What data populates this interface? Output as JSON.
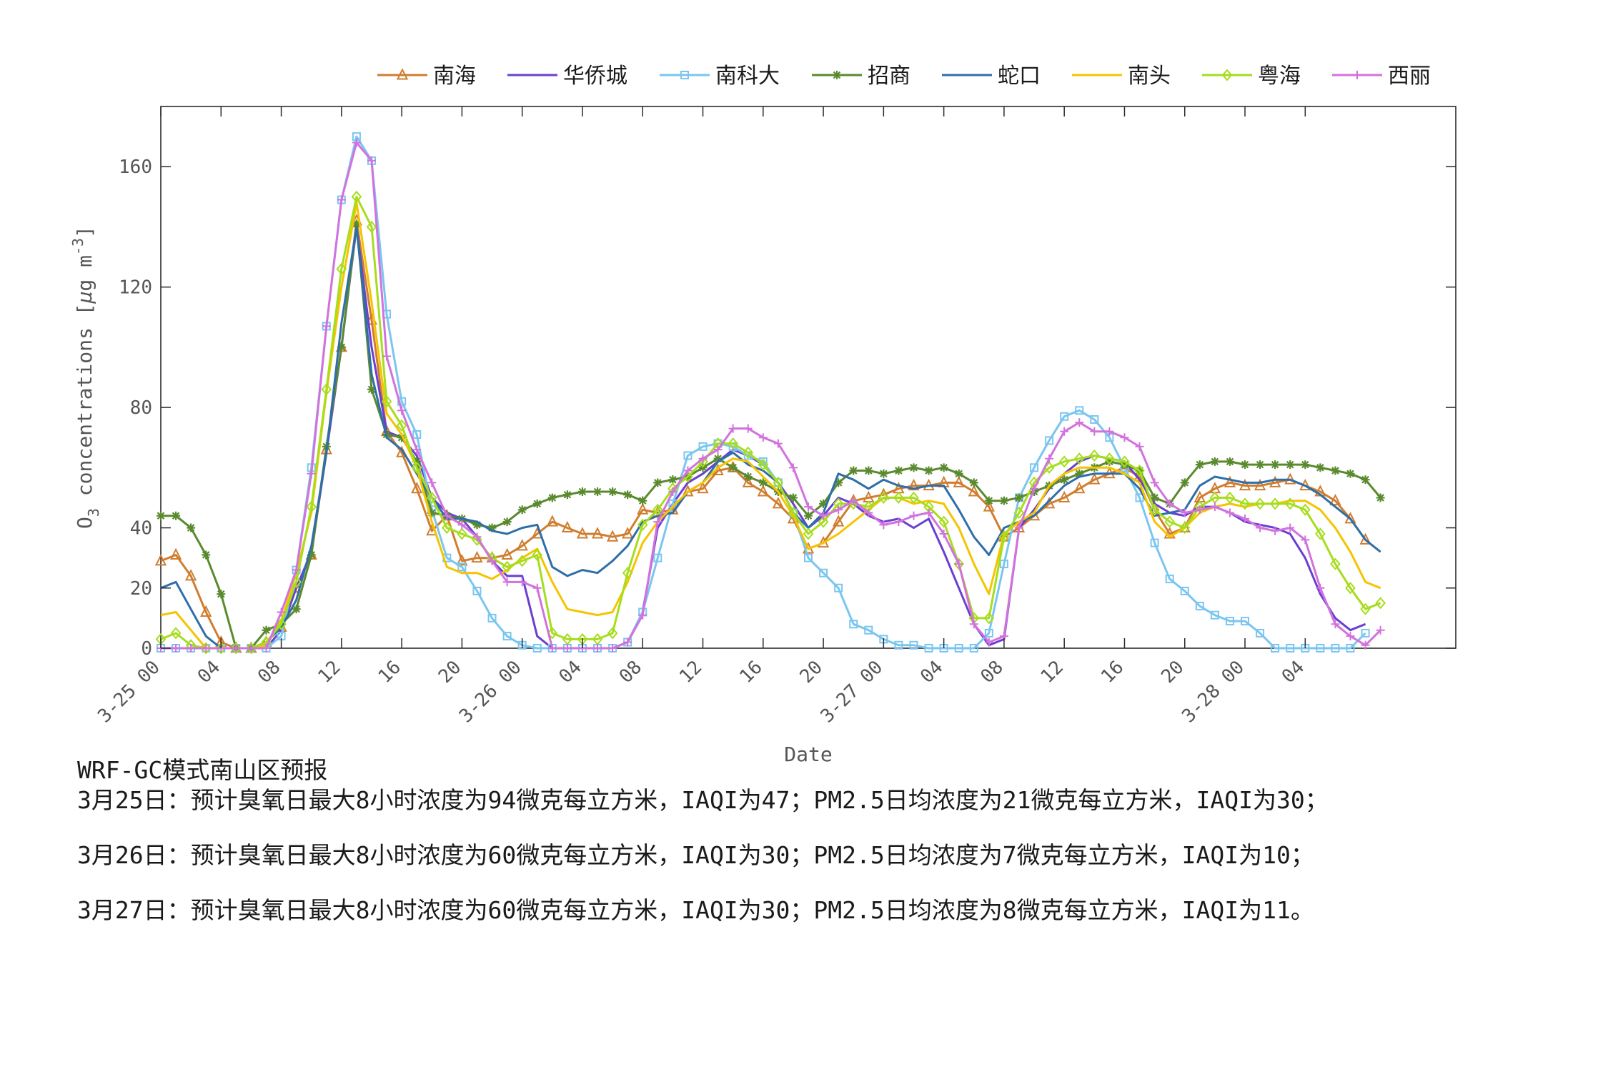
{
  "chart_data": {
    "type": "line",
    "xlabel": "Date",
    "ylabel_main": "O",
    "ylabel_sub": "3",
    "ylabel_rest": " concentrations [",
    "ylabel_mu": "μ",
    "ylabel_unit": "g m",
    "ylabel_sup": "-3",
    "ylabel_end": "]",
    "ylim": [
      0,
      180
    ],
    "yticks": [
      0,
      20,
      40,
      80,
      120,
      160
    ],
    "xlim": [
      0,
      86
    ],
    "xticks": [
      {
        "x": 0,
        "label": "3-25 00"
      },
      {
        "x": 4,
        "label": "04"
      },
      {
        "x": 8,
        "label": "08"
      },
      {
        "x": 12,
        "label": "12"
      },
      {
        "x": 16,
        "label": "16"
      },
      {
        "x": 20,
        "label": "20"
      },
      {
        "x": 24,
        "label": "3-26 00"
      },
      {
        "x": 28,
        "label": "04"
      },
      {
        "x": 32,
        "label": "08"
      },
      {
        "x": 36,
        "label": "12"
      },
      {
        "x": 40,
        "label": "16"
      },
      {
        "x": 44,
        "label": "20"
      },
      {
        "x": 48,
        "label": "3-27 00"
      },
      {
        "x": 52,
        "label": "04"
      },
      {
        "x": 56,
        "label": "08"
      },
      {
        "x": 60,
        "label": "12"
      },
      {
        "x": 64,
        "label": "16"
      },
      {
        "x": 68,
        "label": "20"
      },
      {
        "x": 72,
        "label": "3-28 00"
      },
      {
        "x": 76,
        "label": "04"
      }
    ],
    "legend_position": "top-center",
    "grid": false,
    "x_start_hour": 0,
    "series": [
      {
        "name": "南海",
        "color": "#d07d2f",
        "marker": "triangle",
        "values": [
          29,
          31,
          24,
          12,
          2,
          0,
          0,
          2,
          7,
          20,
          31,
          66,
          100,
          142,
          109,
          72,
          65,
          53,
          39,
          44,
          29,
          30,
          30,
          31,
          34,
          38,
          42,
          40,
          38,
          38,
          37,
          38,
          46,
          45,
          46,
          52,
          53,
          59,
          60,
          55,
          52,
          48,
          43,
          33,
          35,
          42,
          49,
          50,
          51,
          53,
          54,
          54,
          55,
          55,
          52,
          47,
          37,
          40,
          44,
          48,
          50,
          53,
          56,
          58,
          60,
          57,
          46,
          38,
          40,
          50,
          53,
          55,
          54,
          54,
          55,
          56,
          54,
          52,
          49,
          43,
          36
        ]
      },
      {
        "name": "华侨城",
        "color": "#6a3fd1",
        "marker": "none",
        "values": [
          0,
          0,
          0,
          0,
          0,
          0,
          0,
          0,
          6,
          20,
          32,
          65,
          100,
          140,
          100,
          72,
          70,
          64,
          50,
          45,
          43,
          37,
          29,
          24,
          24,
          4,
          0,
          0,
          0,
          0,
          0,
          2,
          12,
          40,
          48,
          55,
          58,
          62,
          66,
          64,
          61,
          55,
          48,
          40,
          44,
          50,
          48,
          44,
          42,
          43,
          40,
          43,
          32,
          20,
          8,
          1,
          3,
          40,
          46,
          53,
          58,
          62,
          64,
          63,
          62,
          56,
          48,
          45,
          44,
          47,
          47,
          45,
          42,
          41,
          40,
          38,
          30,
          18,
          10,
          6,
          8
        ]
      },
      {
        "name": "南科大",
        "color": "#7ac6f0",
        "marker": "square",
        "values": [
          0,
          0,
          0,
          0,
          0,
          0,
          0,
          0,
          4,
          26,
          60,
          107,
          149,
          170,
          162,
          111,
          82,
          71,
          46,
          30,
          27,
          19,
          10,
          4,
          1,
          0,
          0,
          0,
          0,
          0,
          0,
          2,
          12,
          30,
          48,
          64,
          67,
          68,
          67,
          64,
          62,
          55,
          45,
          30,
          25,
          20,
          8,
          6,
          3,
          1,
          1,
          0,
          0,
          0,
          0,
          5,
          28,
          50,
          60,
          69,
          77,
          79,
          76,
          70,
          60,
          50,
          35,
          23,
          19,
          14,
          11,
          9,
          9,
          5,
          0,
          0,
          0,
          0,
          0,
          0,
          5
        ]
      },
      {
        "name": "招商",
        "color": "#5a8a2e",
        "marker": "star",
        "values": [
          44,
          44,
          40,
          31,
          18,
          0,
          0,
          6,
          8,
          13,
          31,
          67,
          100,
          141,
          86,
          71,
          70,
          62,
          45,
          44,
          43,
          41,
          40,
          42,
          46,
          48,
          50,
          51,
          52,
          52,
          52,
          51,
          49,
          55,
          56,
          57,
          60,
          63,
          60,
          57,
          55,
          52,
          50,
          44,
          48,
          55,
          59,
          59,
          58,
          59,
          60,
          59,
          60,
          58,
          55,
          49,
          49,
          50,
          52,
          54,
          56,
          58,
          60,
          62,
          61,
          59,
          50,
          48,
          55,
          61,
          62,
          62,
          61,
          61,
          61,
          61,
          61,
          60,
          59,
          58,
          56,
          50
        ]
      },
      {
        "name": "蛇口",
        "color": "#2f6ea8",
        "marker": "none",
        "values": [
          20,
          22,
          13,
          4,
          0,
          0,
          0,
          2,
          7,
          16,
          34,
          65,
          108,
          140,
          91,
          70,
          66,
          58,
          50,
          43,
          43,
          42,
          39,
          38,
          40,
          41,
          27,
          24,
          26,
          25,
          29,
          34,
          42,
          44,
          45,
          52,
          55,
          62,
          65,
          61,
          59,
          55,
          45,
          40,
          45,
          58,
          56,
          53,
          56,
          54,
          53,
          54,
          54,
          46,
          37,
          31,
          40,
          42,
          44,
          49,
          54,
          57,
          58,
          58,
          58,
          53,
          44,
          45,
          46,
          54,
          57,
          56,
          55,
          55,
          56,
          56,
          54,
          51,
          47,
          43,
          36,
          32
        ]
      },
      {
        "name": "南头",
        "color": "#f5c400",
        "marker": "none",
        "values": [
          11,
          12,
          6,
          0,
          0,
          0,
          0,
          1,
          9,
          25,
          45,
          85,
          120,
          148,
          115,
          78,
          71,
          60,
          42,
          27,
          25,
          25,
          23,
          26,
          30,
          33,
          22,
          13,
          12,
          11,
          12,
          22,
          35,
          42,
          47,
          52,
          55,
          60,
          63,
          62,
          57,
          52,
          44,
          33,
          35,
          38,
          42,
          46,
          50,
          50,
          48,
          49,
          48,
          40,
          28,
          18,
          38,
          42,
          45,
          54,
          58,
          60,
          60,
          60,
          58,
          55,
          42,
          37,
          40,
          45,
          47,
          48,
          47,
          48,
          48,
          49,
          49,
          46,
          40,
          32,
          22,
          20
        ]
      },
      {
        "name": "粤海",
        "color": "#a6dd1c",
        "marker": "diamond",
        "values": [
          3,
          5,
          1,
          0,
          0,
          0,
          0,
          2,
          8,
          22,
          47,
          86,
          126,
          150,
          140,
          82,
          74,
          60,
          50,
          40,
          38,
          36,
          30,
          27,
          29,
          31,
          5,
          3,
          3,
          3,
          5,
          25,
          41,
          46,
          53,
          57,
          62,
          68,
          68,
          65,
          61,
          55,
          45,
          38,
          42,
          48,
          48,
          47,
          50,
          50,
          50,
          47,
          42,
          28,
          10,
          10,
          37,
          45,
          55,
          60,
          62,
          63,
          64,
          63,
          62,
          59,
          46,
          42,
          40,
          47,
          50,
          50,
          48,
          48,
          48,
          48,
          46,
          38,
          28,
          20,
          13,
          15
        ]
      },
      {
        "name": "西丽",
        "color": "#d272dd",
        "marker": "plus",
        "values": [
          0,
          0,
          0,
          0,
          0,
          0,
          0,
          0,
          12,
          26,
          58,
          107,
          149,
          168,
          162,
          97,
          79,
          66,
          55,
          44,
          41,
          37,
          29,
          22,
          22,
          20,
          0,
          0,
          0,
          0,
          0,
          2,
          11,
          42,
          52,
          59,
          63,
          66,
          73,
          73,
          70,
          68,
          60,
          47,
          44,
          46,
          49,
          45,
          41,
          42,
          44,
          45,
          38,
          28,
          8,
          2,
          4,
          40,
          53,
          63,
          72,
          75,
          72,
          72,
          70,
          67,
          55,
          48,
          45,
          46,
          47,
          45,
          43,
          40,
          39,
          40,
          36,
          20,
          8,
          4,
          1,
          6
        ]
      }
    ]
  },
  "forecast": {
    "heading": "WRF-GC模式南山区预报",
    "days": [
      {
        "text": "3月25日：预计臭氧日最大8小时浓度为94微克每立方米，IAQI为47；PM2.5日均浓度为21微克每立方米，IAQI为30；"
      },
      {
        "text": "3月26日：预计臭氧日最大8小时浓度为60微克每立方米，IAQI为30；PM2.5日均浓度为7微克每立方米，IAQI为10；"
      },
      {
        "text": "3月27日：预计臭氧日最大8小时浓度为60微克每立方米，IAQI为30；PM2.5日均浓度为8微克每立方米，IAQI为11。"
      }
    ]
  }
}
